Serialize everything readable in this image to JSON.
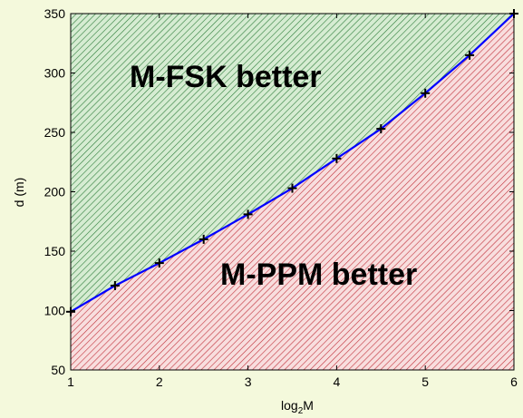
{
  "chart_data": {
    "type": "line",
    "title": "",
    "xlabel_main": "log",
    "xlabel_sub": "2",
    "xlabel_tail": "M",
    "ylabel": "d (m)",
    "xlim": [
      1,
      6
    ],
    "ylim": [
      50,
      350
    ],
    "xticks": [
      1,
      2,
      3,
      4,
      5,
      6
    ],
    "yticks": [
      50,
      100,
      150,
      200,
      250,
      300,
      350
    ],
    "series": [
      {
        "x": [
          1,
          1.5,
          2,
          2.5,
          3,
          3.5,
          4,
          4.5,
          5,
          5.5,
          6
        ],
        "y": [
          99,
          121,
          140,
          160,
          181,
          203,
          228,
          253,
          283,
          315,
          350
        ],
        "color": "#0000ff",
        "marker": "+"
      }
    ],
    "regions": [
      {
        "label": "M-FSK better",
        "side": "above",
        "color": "#2e7d3a",
        "fill": "#d6ecd2"
      },
      {
        "label": "M-PPM better",
        "side": "below",
        "color": "#c0303a",
        "fill": "#f4d4d4"
      }
    ],
    "grid": false
  }
}
